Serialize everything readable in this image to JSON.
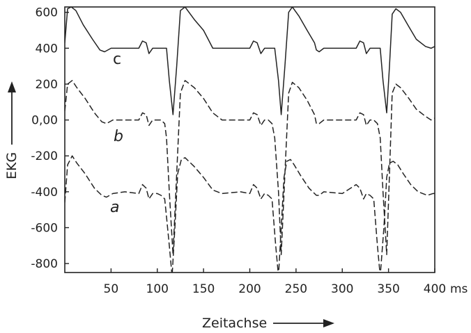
{
  "chart_data": {
    "type": "line",
    "xlabel": "Zeitachse",
    "ylabel": "EKG",
    "x_unit": "ms",
    "xlim": [
      0,
      400
    ],
    "ylim": [
      -850,
      630
    ],
    "x_ticks": [
      50,
      100,
      150,
      200,
      250,
      300,
      350,
      400
    ],
    "y_ticks": [
      600,
      400,
      200,
      0,
      -200,
      -400,
      -600,
      -800
    ],
    "y_tick_labels": [
      "600",
      "400",
      "200",
      "0,00",
      "-200",
      "-400",
      "-600",
      "-800"
    ],
    "grid": false,
    "series": [
      {
        "name": "c",
        "style": "solid",
        "x": [
          0,
          3,
          7,
          12,
          20,
          30,
          38,
          43,
          50,
          65,
          80,
          84,
          88,
          91,
          95,
          100,
          104,
          108,
          110,
          113,
          117,
          121,
          125,
          130,
          140,
          150,
          155,
          160,
          170,
          180,
          195,
          200,
          204,
          208,
          212,
          216,
          220,
          224,
          227,
          231,
          234,
          238,
          242,
          246,
          253,
          262,
          270,
          272,
          275,
          280,
          300,
          315,
          319,
          323,
          326,
          330,
          334,
          338,
          341,
          344,
          348,
          351,
          354,
          358,
          363,
          372,
          380,
          390,
          396,
          400
        ],
        "y": [
          430,
          620,
          630,
          610,
          530,
          450,
          390,
          380,
          400,
          400,
          400,
          440,
          430,
          370,
          400,
          400,
          400,
          400,
          400,
          220,
          30,
          300,
          610,
          630,
          560,
          500,
          450,
          400,
          400,
          400,
          400,
          400,
          440,
          430,
          370,
          400,
          400,
          400,
          400,
          220,
          30,
          300,
          600,
          630,
          580,
          500,
          430,
          390,
          380,
          400,
          400,
          400,
          440,
          430,
          370,
          400,
          400,
          400,
          400,
          220,
          40,
          300,
          590,
          620,
          600,
          520,
          450,
          410,
          400,
          410
        ]
      },
      {
        "name": "b",
        "style": "dashed",
        "x": [
          0,
          3,
          8,
          13,
          22,
          32,
          40,
          45,
          52,
          65,
          80,
          84,
          88,
          91,
          95,
          100,
          104,
          108,
          110,
          113,
          117,
          121,
          125,
          130,
          140,
          150,
          160,
          170,
          190,
          200,
          204,
          208,
          212,
          216,
          220,
          224,
          227,
          231,
          234,
          238,
          242,
          246,
          253,
          262,
          270,
          272,
          275,
          280,
          300,
          315,
          319,
          323,
          326,
          330,
          334,
          338,
          341,
          344,
          348,
          351,
          354,
          358,
          363,
          372,
          380,
          390,
          396,
          400
        ],
        "y": [
          50,
          200,
          220,
          180,
          120,
          40,
          -10,
          -20,
          0,
          0,
          0,
          40,
          30,
          -30,
          0,
          0,
          0,
          -20,
          -100,
          -400,
          -750,
          -300,
          150,
          220,
          180,
          120,
          40,
          0,
          0,
          0,
          40,
          30,
          -30,
          0,
          0,
          -20,
          -100,
          -400,
          -750,
          -300,
          150,
          210,
          180,
          110,
          30,
          -20,
          -20,
          0,
          0,
          0,
          40,
          30,
          -30,
          0,
          0,
          -20,
          -100,
          -400,
          -750,
          -300,
          150,
          200,
          180,
          120,
          60,
          20,
          0,
          10
        ]
      },
      {
        "name": "a",
        "style": "dashed",
        "x": [
          0,
          3,
          8,
          13,
          22,
          32,
          40,
          45,
          52,
          65,
          80,
          84,
          88,
          91,
          95,
          100,
          104,
          108,
          110,
          113,
          116,
          119,
          122,
          126,
          130,
          140,
          150,
          160,
          170,
          190,
          200,
          204,
          208,
          212,
          216,
          220,
          224,
          228,
          231,
          234,
          237,
          240,
          244,
          248,
          255,
          264,
          272,
          275,
          280,
          300,
          315,
          319,
          323,
          326,
          330,
          334,
          338,
          341,
          345,
          348,
          351,
          355,
          360,
          366,
          374,
          382,
          392,
          398,
          400
        ],
        "y": [
          -460,
          -250,
          -200,
          -240,
          -300,
          -380,
          -420,
          -430,
          -410,
          -400,
          -410,
          -360,
          -380,
          -440,
          -410,
          -410,
          -420,
          -440,
          -540,
          -700,
          -870,
          -600,
          -300,
          -220,
          -210,
          -260,
          -320,
          -390,
          -410,
          -400,
          -410,
          -360,
          -380,
          -440,
          -410,
          -420,
          -440,
          -700,
          -870,
          -600,
          -320,
          -230,
          -220,
          -250,
          -310,
          -380,
          -420,
          -420,
          -400,
          -410,
          -360,
          -380,
          -440,
          -410,
          -420,
          -440,
          -700,
          -870,
          -600,
          -320,
          -240,
          -230,
          -250,
          -300,
          -360,
          -400,
          -420,
          -410,
          -410
        ]
      }
    ]
  }
}
